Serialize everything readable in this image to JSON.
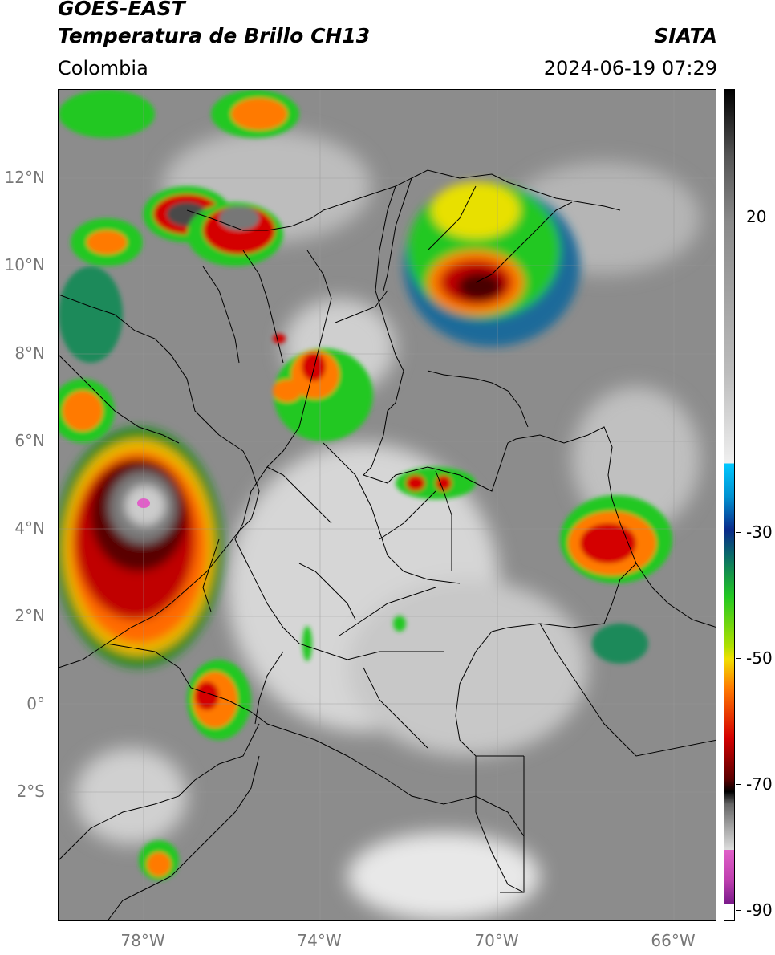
{
  "header": {
    "title_line1": "GOES-EAST",
    "title_line2": "Temperatura de Brillo CH13",
    "region": "Colombia",
    "organization": "SIATA",
    "datetime": "2024-06-19 07:29"
  },
  "map": {
    "lat_labels": [
      "12°N",
      "10°N",
      "8°N",
      "6°N",
      "4°N",
      "2°N",
      "0°",
      "2°S"
    ],
    "lon_labels": [
      "78°W",
      "74°W",
      "70°W",
      "66°W"
    ]
  },
  "colorbar": {
    "ticks": [
      "20",
      "-30",
      "-50",
      "-70",
      "-90"
    ],
    "colors": {
      "warm_gray": "#8a8a8a",
      "light_gray": "#e0e0e0",
      "cyan": "#00c8ff",
      "blue": "#0a2a8a",
      "green": "#22c822",
      "yellow": "#f0e000",
      "orange": "#ff7a00",
      "red": "#d40000",
      "dark_red": "#5a0000",
      "black": "#000000",
      "pink": "#e060c8",
      "purple": "#7a1a8a"
    }
  }
}
